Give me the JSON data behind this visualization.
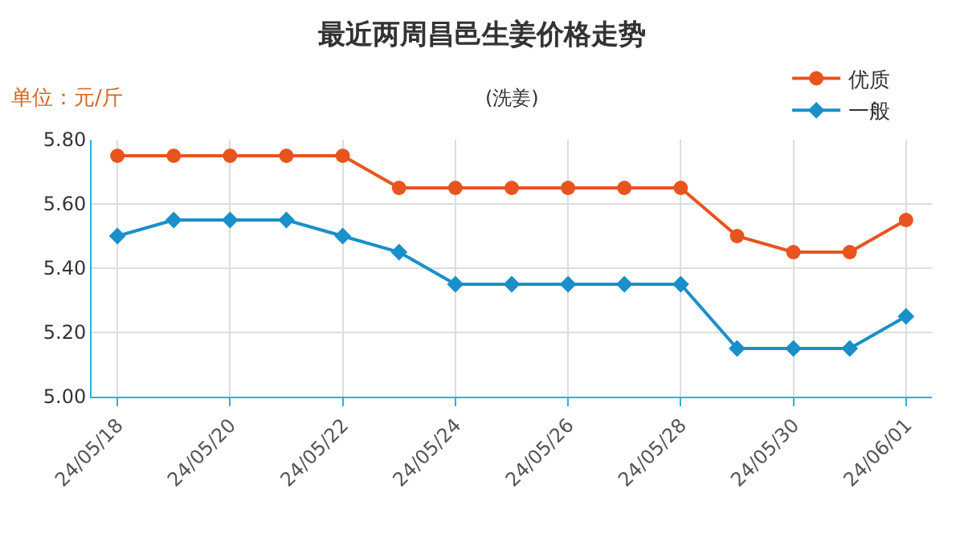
{
  "chart_data": {
    "type": "line",
    "title": "最近两周昌邑生姜价格走势",
    "subtitle": "(洗姜)",
    "ylabel": "单位：元/斤",
    "x": [
      "--05-18",
      "--05-19",
      "--05-20",
      "--05-21",
      "--05-22",
      "--05-23",
      "--05-24",
      "--05-25",
      "--05-26",
      "--05-27",
      "--05-28",
      "--05-29",
      "--05-30",
      "--05-31",
      "--06-01"
    ],
    "series": [
      {
        "name": "优质",
        "color": "#e8541e",
        "marker": "circle",
        "values": [
          5.75,
          5.75,
          5.75,
          5.75,
          5.75,
          5.65,
          5.65,
          5.65,
          5.65,
          5.65,
          5.65,
          5.5,
          5.45,
          5.45,
          5.55
        ]
      },
      {
        "name": "一般",
        "color": "#1a8fc9",
        "marker": "diamond",
        "values": [
          5.5,
          5.55,
          5.55,
          5.55,
          5.5,
          5.45,
          5.35,
          5.35,
          5.35,
          5.35,
          5.35,
          5.15,
          5.15,
          5.15,
          5.25
        ]
      }
    ],
    "xlim": [
      "--05-17T13:00",
      "--06-01T11:00"
    ],
    "xticks": [
      {
        "value": "--05-18",
        "label": "24/05/18"
      },
      {
        "value": "--05-20",
        "label": "24/05/20"
      },
      {
        "value": "--05-22",
        "label": "24/05/22"
      },
      {
        "value": "--05-24",
        "label": "24/05/24"
      },
      {
        "value": "--05-26",
        "label": "24/05/26"
      },
      {
        "value": "--05-28",
        "label": "24/05/28"
      },
      {
        "value": "--05-30",
        "label": "24/05/30"
      },
      {
        "value": "--06-01",
        "label": "24/06/01"
      }
    ],
    "ylim": [
      5.0,
      5.8
    ],
    "yticks": [
      {
        "value": 5.0,
        "label": "5.00"
      },
      {
        "value": 5.2,
        "label": "5.20"
      },
      {
        "value": 5.4,
        "label": "5.40"
      },
      {
        "value": 5.6,
        "label": "5.60"
      },
      {
        "value": 5.8,
        "label": "5.80"
      }
    ],
    "grid": true,
    "legend": "top right",
    "line_style": "solid"
  }
}
